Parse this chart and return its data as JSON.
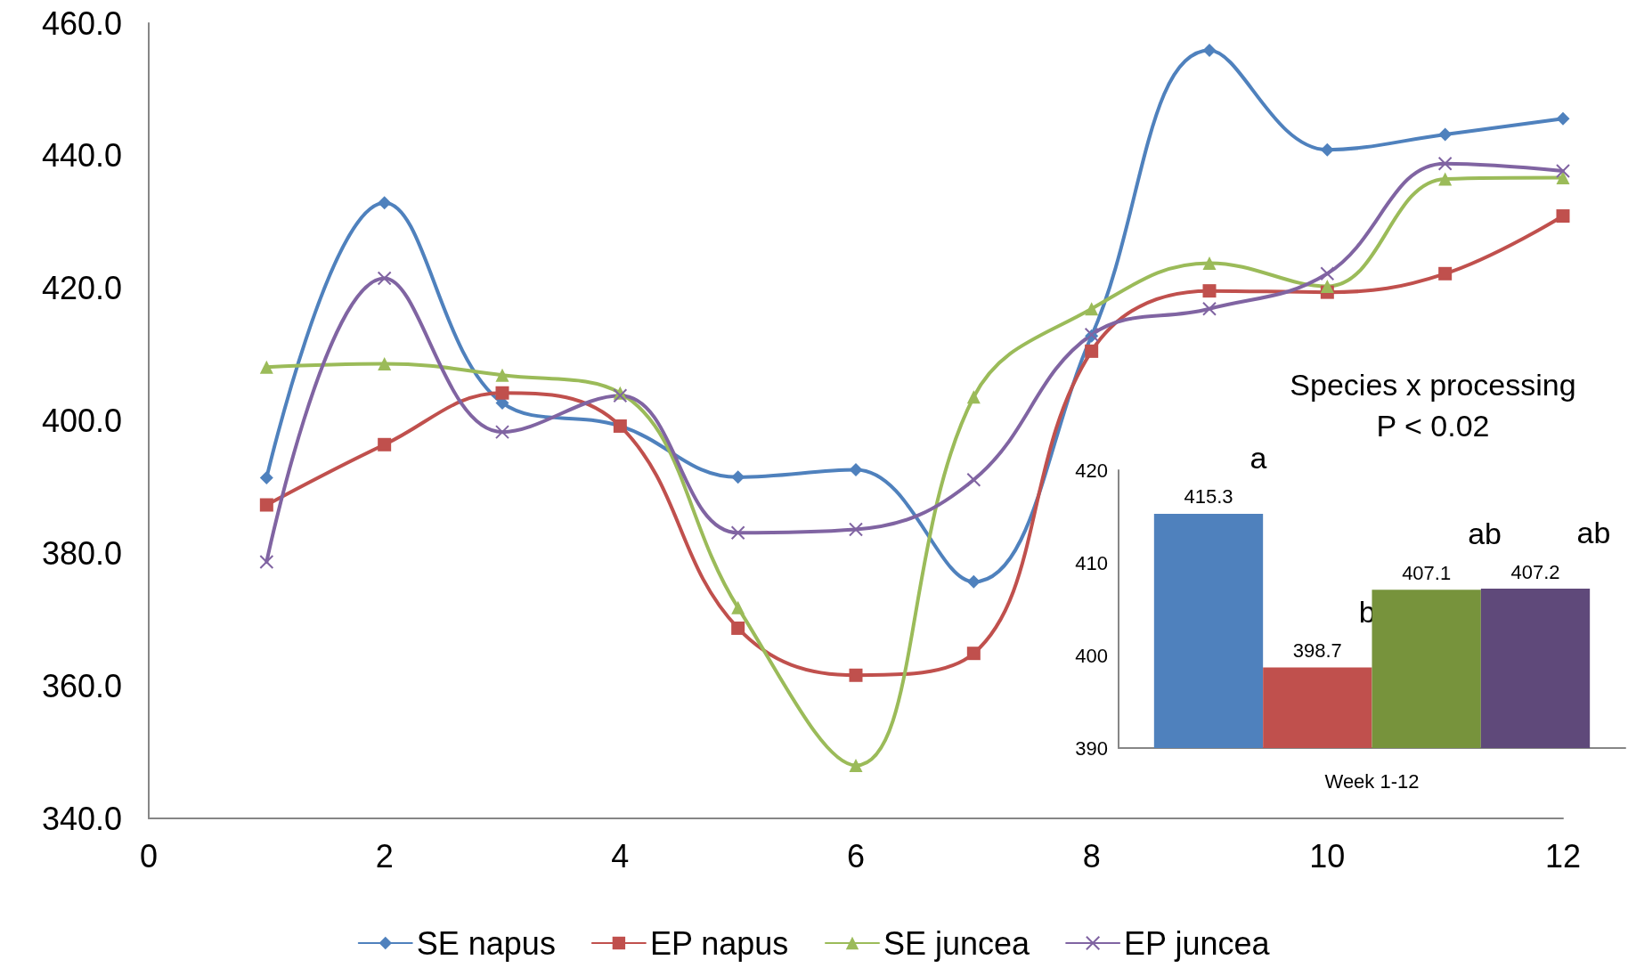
{
  "chart_data": [
    {
      "type": "line",
      "x": [
        1,
        2,
        3,
        4,
        5,
        6,
        7,
        8,
        9,
        10,
        11,
        12
      ],
      "series": [
        {
          "name": "SE napus",
          "color": "#4f81bd",
          "marker": "diamond",
          "values": [
            391.4,
            432.9,
            402.7,
            399.2,
            391.5,
            392.6,
            375.7,
            412.8,
            455.9,
            440.9,
            443.2,
            445.6
          ]
        },
        {
          "name": "EP napus",
          "color": "#c0504d",
          "marker": "square",
          "values": [
            387.3,
            396.4,
            404.2,
            399.2,
            368.7,
            361.6,
            364.9,
            410.5,
            419.6,
            419.4,
            422.2,
            430.9
          ]
        },
        {
          "name": "SE juncea",
          "color": "#9bbb59",
          "marker": "triangle",
          "values": [
            408.1,
            408.6,
            406.9,
            404.2,
            371.8,
            348.0,
            403.6,
            416.9,
            423.8,
            420.3,
            436.5,
            436.7
          ]
        },
        {
          "name": "EP juncea",
          "color": "#8064a2",
          "marker": "cross",
          "values": [
            378.7,
            421.5,
            398.3,
            403.8,
            383.1,
            383.6,
            391.1,
            413.0,
            416.9,
            422.2,
            438.8,
            437.7
          ]
        }
      ],
      "xlim": [
        0,
        12
      ],
      "xticks": [
        0,
        2,
        4,
        6,
        8,
        10,
        12
      ],
      "ylim": [
        340,
        460
      ],
      "yticks": [
        {
          "value": 340,
          "label": "340.0"
        },
        {
          "value": 360,
          "label": "360.0"
        },
        {
          "value": 380,
          "label": "380.0"
        },
        {
          "value": 400,
          "label": "400.0"
        },
        {
          "value": 420,
          "label": "420.0"
        },
        {
          "value": 440,
          "label": "440.0"
        },
        {
          "value": 460,
          "label": "460.0"
        }
      ],
      "grid": false,
      "legend": "bottom",
      "line_style": "solid"
    },
    {
      "type": "bar",
      "title": "Species x processing",
      "subtitle": "P < 0.02",
      "categories": [
        "Week 1-12"
      ],
      "series": [
        {
          "color": "#4f81bd",
          "values": [
            415.3
          ]
        },
        {
          "color": "#c0504d",
          "values": [
            398.7
          ]
        },
        {
          "color": "#77933c",
          "values": [
            407.1
          ]
        },
        {
          "color": "#5f497a",
          "values": [
            407.2
          ]
        }
      ],
      "ylim": [
        390,
        420
      ],
      "yticks": [
        390,
        400,
        410,
        420
      ],
      "grid": false,
      "legend": false,
      "data_labels": true,
      "annotations": [
        "a",
        "b",
        "ab",
        "ab"
      ]
    }
  ]
}
